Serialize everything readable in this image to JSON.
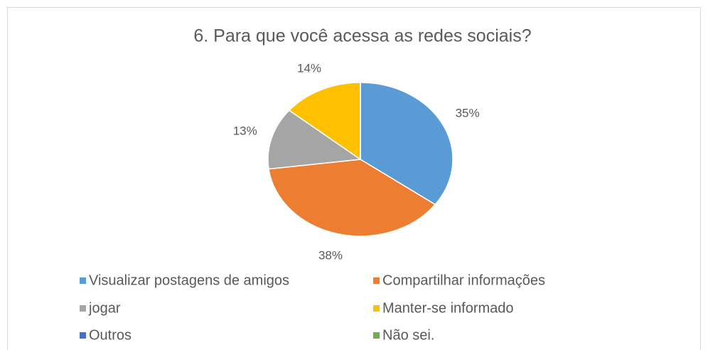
{
  "chart_data": {
    "type": "pie",
    "title": "6. Para que você acessa as redes sociais?",
    "categories": [
      "Visualizar postagens de amigos",
      "Compartilhar informações",
      "jogar",
      "Manter-se informado",
      "Outros",
      "Não sei."
    ],
    "values": [
      35,
      38,
      13,
      14,
      0,
      0
    ],
    "value_labels": [
      "35%",
      "38%",
      "13%",
      "14%",
      null,
      null
    ],
    "colors": [
      "#5b9bd5",
      "#ed7d31",
      "#a5a5a5",
      "#ffc000",
      "#4472c4",
      "#70ad47"
    ],
    "legend": "bottom"
  }
}
